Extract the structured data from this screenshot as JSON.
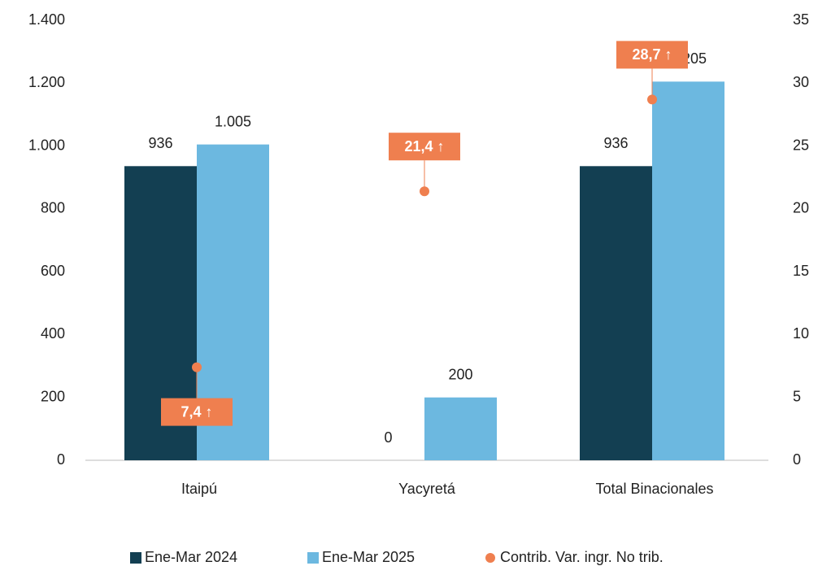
{
  "chart_data": {
    "type": "bar",
    "categories": [
      "Itaipú",
      "Yacyretá",
      "Total Binacionales"
    ],
    "series": [
      {
        "name": "Ene-Mar 2024",
        "color": "#133f52",
        "values": [
          936,
          0,
          936
        ]
      },
      {
        "name": "Ene-Mar 2025",
        "color": "#6cb8e0",
        "values": [
          1005,
          200,
          1205
        ],
        "value_labels": [
          "1.005",
          "200",
          "1.205"
        ]
      },
      {
        "name": "Contrib. Var. ingr. No trib.",
        "color": "#ef7f4f",
        "type": "scatter",
        "axis": "y2",
        "values": [
          7.4,
          21.4,
          28.7
        ],
        "value_labels": [
          "7,4 ↑",
          "21,4 ↑",
          "28,7 ↑"
        ]
      }
    ],
    "ylim": [
      0,
      1400
    ],
    "yticks": [
      0,
      200,
      400,
      600,
      800,
      {
        "value": 1000,
        "label": "1.000"
      },
      {
        "value": 1200,
        "label": "1.200"
      },
      {
        "value": 1400,
        "label": "1.400"
      }
    ],
    "y2lim": [
      0,
      35
    ],
    "y2ticks": [
      0,
      5,
      10,
      15,
      20,
      25,
      30,
      35
    ],
    "legend": "bottom"
  }
}
